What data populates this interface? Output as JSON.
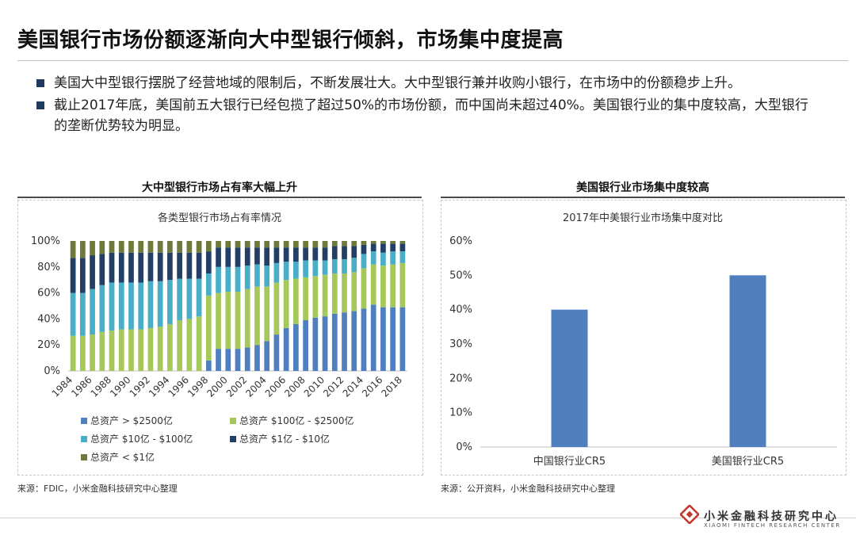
{
  "header": {
    "title": "美国银行市场份额逐渐向大中型银行倾斜，市场集中度提高"
  },
  "bullets": [
    "美国大中型银行摆脱了经营地域的限制后，不断发展壮大。大中型银行兼并收购小银行，在市场中的份额稳步上升。",
    "截止2017年底，美国前五大银行已经包揽了超过50%的市场份额，而中国尚未超过40%。美国银行业的集中度较高，大型银行的垄断优势较为明显。"
  ],
  "left_panel": {
    "heading": "大中型银行市场占有率大幅上升",
    "source": "来源：FDIC，小米金融科技研究中心整理"
  },
  "right_panel": {
    "heading": "美国银行业市场集中度较高",
    "source": "来源：公开资料，小米金融科技研究中心整理"
  },
  "brand": {
    "name_cn": "小米金融科技研究中心",
    "name_en": "XIAOMI FINTECH RESEARCH CENTER",
    "logo_icon": "diamond-logo-icon"
  },
  "colors": {
    "accent_dark": "#1f3a5f",
    "series_blue": "#4f7fbf",
    "series_green": "#a6c75a",
    "series_cyan": "#4aaec8",
    "series_navy": "#243f66",
    "series_olive": "#6d7a3a",
    "logo_red": "#c0392b"
  },
  "chart_data": [
    {
      "type": "bar",
      "stacked": true,
      "title": "各类型银行市场占有率情况",
      "xlabel": "",
      "ylabel": "",
      "ylim": [
        0,
        100
      ],
      "yticks": [
        "0%",
        "20%",
        "40%",
        "60%",
        "80%",
        "100%"
      ],
      "categories": [
        "1984",
        "1985",
        "1986",
        "1987",
        "1988",
        "1989",
        "1990",
        "1991",
        "1992",
        "1993",
        "1994",
        "1995",
        "1996",
        "1997",
        "1998",
        "1999",
        "2000",
        "2001",
        "2002",
        "2003",
        "2004",
        "2005",
        "2006",
        "2007",
        "2008",
        "2009",
        "2010",
        "2011",
        "2012",
        "2013",
        "2014",
        "2015",
        "2016",
        "2017",
        "2018"
      ],
      "xtick_labels": [
        "1984",
        "1986",
        "1988",
        "1990",
        "1992",
        "1994",
        "1996",
        "1998",
        "2000",
        "2002",
        "2004",
        "2006",
        "2008",
        "2010",
        "2012",
        "2014",
        "2016",
        "2018"
      ],
      "legend_placement": "bottom",
      "series": [
        {
          "name": "总资产 > $2500亿",
          "color": "#4f7fbf",
          "values": [
            0,
            0,
            0,
            0,
            0,
            0,
            0,
            0,
            0,
            0,
            0,
            0,
            0,
            0,
            8,
            17,
            17,
            17,
            18,
            20,
            23,
            28,
            33,
            36,
            39,
            41,
            42,
            44,
            45,
            46,
            48,
            51,
            49,
            49,
            49
          ]
        },
        {
          "name": "总资产 $100亿 - $2500亿",
          "color": "#a6c75a",
          "values": [
            27,
            27,
            28,
            30,
            31,
            32,
            32,
            32,
            33,
            34,
            36,
            39,
            40,
            42,
            50,
            43,
            44,
            44,
            45,
            45,
            42,
            40,
            37,
            35,
            33,
            32,
            32,
            31,
            30,
            30,
            31,
            31,
            32,
            33,
            34
          ]
        },
        {
          "name": "总资产 $10亿 - $100亿",
          "color": "#4aaec8",
          "values": [
            33,
            33,
            35,
            36,
            37,
            36,
            36,
            36,
            36,
            35,
            34,
            32,
            31,
            29,
            17,
            20,
            19,
            19,
            18,
            17,
            16,
            15,
            14,
            13,
            13,
            12,
            11,
            11,
            11,
            11,
            11,
            10,
            10,
            10,
            9
          ]
        },
        {
          "name": "总资产 $1亿 - $10亿",
          "color": "#243f66",
          "values": [
            27,
            27,
            26,
            24,
            23,
            23,
            23,
            23,
            22,
            22,
            21,
            20,
            20,
            20,
            17,
            15,
            15,
            15,
            14,
            13,
            14,
            12,
            11,
            11,
            10,
            10,
            10,
            10,
            10,
            9,
            7,
            6,
            7,
            6,
            6
          ]
        },
        {
          "name": "总资产 < $1亿",
          "color": "#6d7a3a",
          "values": [
            13,
            13,
            11,
            10,
            9,
            9,
            9,
            9,
            9,
            9,
            9,
            9,
            9,
            9,
            8,
            5,
            5,
            5,
            5,
            5,
            5,
            5,
            5,
            5,
            5,
            5,
            5,
            4,
            4,
            4,
            3,
            2,
            2,
            2,
            2
          ]
        }
      ]
    },
    {
      "type": "bar",
      "title": "2017年中美银行业市场集中度对比",
      "xlabel": "",
      "ylabel": "",
      "ylim": [
        0,
        60
      ],
      "yticks": [
        "0%",
        "10%",
        "20%",
        "30%",
        "40%",
        "50%",
        "60%"
      ],
      "categories": [
        "中国银行业CR5",
        "美国银行业CR5"
      ],
      "values": [
        40,
        50
      ],
      "color": "#4f7fbf"
    }
  ]
}
